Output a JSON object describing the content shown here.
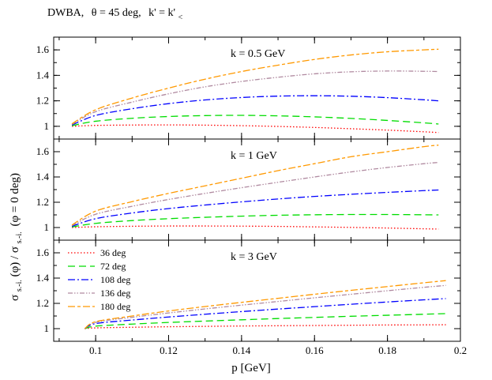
{
  "header": {
    "prefix": "DWBA,",
    "theta_label": "θ = 45 deg,",
    "k_label": "k' = k'",
    "k_subscript": "<"
  },
  "x_axis": {
    "label": "p [GeV]",
    "range": [
      0.0885,
      0.2
    ],
    "ticks": [
      0.1,
      0.12,
      0.14,
      0.16,
      0.18,
      0.2
    ],
    "tick_labels": [
      "0.1",
      "0.12",
      "0.14",
      "0.16",
      "0.18",
      "0.2"
    ]
  },
  "y_axis": {
    "label_main": "σ",
    "label_sub1": "s.-i.",
    "label_mid": "(φ) / σ",
    "label_sub2": "s.-i.",
    "label_end": "(φ = 0 deg)"
  },
  "legend": [
    {
      "label": "36 deg",
      "color": "#ff0000",
      "dash": "1.5,2.5"
    },
    {
      "label": "72 deg",
      "color": "#00dd00",
      "dash": "9,5"
    },
    {
      "label": "108 deg",
      "color": "#0000ff",
      "dash": "9,3,2,3"
    },
    {
      "label": "136 deg",
      "color": "#b08aa0",
      "dash": "6,2,1.5,2,1.5,2"
    },
    {
      "label": "180 deg",
      "color": "#ff9900",
      "dash": "9,3,4,3"
    }
  ],
  "chart_data": [
    {
      "type": "line",
      "panel": "top",
      "title": "k = 0.5 GeV",
      "ylim": [
        0.9,
        1.7
      ],
      "yticks": [
        1.0,
        1.2,
        1.4,
        1.6
      ],
      "ytick_labels": [
        "1",
        "1.2",
        "1.4",
        "1.6"
      ],
      "x": [
        0.0935,
        0.1,
        0.11,
        0.12,
        0.13,
        0.14,
        0.15,
        0.16,
        0.17,
        0.18,
        0.19,
        0.194
      ],
      "series": [
        {
          "name": "36 deg",
          "values": [
            1.0,
            1.007,
            1.01,
            1.011,
            1.009,
            1.005,
            0.999,
            0.991,
            0.981,
            0.97,
            0.957,
            0.951
          ]
        },
        {
          "name": "72 deg",
          "values": [
            1.005,
            1.04,
            1.063,
            1.077,
            1.084,
            1.086,
            1.082,
            1.074,
            1.062,
            1.046,
            1.027,
            1.018
          ]
        },
        {
          "name": "108 deg",
          "values": [
            1.01,
            1.085,
            1.138,
            1.178,
            1.207,
            1.226,
            1.237,
            1.24,
            1.236,
            1.225,
            1.208,
            1.2
          ]
        },
        {
          "name": "136 deg",
          "values": [
            1.015,
            1.115,
            1.19,
            1.255,
            1.31,
            1.352,
            1.385,
            1.412,
            1.428,
            1.434,
            1.432,
            1.43
          ]
        },
        {
          "name": "180 deg",
          "values": [
            1.02,
            1.13,
            1.222,
            1.3,
            1.37,
            1.43,
            1.48,
            1.525,
            1.56,
            1.585,
            1.6,
            1.605
          ]
        }
      ]
    },
    {
      "type": "line",
      "panel": "middle",
      "title": "k = 1 GeV",
      "ylim": [
        0.9,
        1.7
      ],
      "yticks": [
        1.0,
        1.2,
        1.4,
        1.6
      ],
      "ytick_labels": [
        "1",
        "1.2",
        "1.4",
        "1.6"
      ],
      "x": [
        0.0935,
        0.1,
        0.11,
        0.12,
        0.13,
        0.14,
        0.15,
        0.16,
        0.17,
        0.18,
        0.19,
        0.194
      ],
      "series": [
        {
          "name": "36 deg",
          "values": [
            1.0,
            1.006,
            1.01,
            1.012,
            1.012,
            1.011,
            1.009,
            1.005,
            1.001,
            0.996,
            0.99,
            0.988
          ]
        },
        {
          "name": "72 deg",
          "values": [
            1.005,
            1.033,
            1.055,
            1.07,
            1.081,
            1.09,
            1.097,
            1.101,
            1.103,
            1.103,
            1.101,
            1.1
          ]
        },
        {
          "name": "108 deg",
          "values": [
            1.01,
            1.07,
            1.115,
            1.15,
            1.178,
            1.203,
            1.226,
            1.246,
            1.263,
            1.278,
            1.292,
            1.297
          ]
        },
        {
          "name": "136 deg",
          "values": [
            1.015,
            1.105,
            1.168,
            1.222,
            1.27,
            1.315,
            1.358,
            1.4,
            1.44,
            1.475,
            1.505,
            1.515
          ]
        },
        {
          "name": "180 deg",
          "values": [
            1.02,
            1.13,
            1.205,
            1.27,
            1.33,
            1.39,
            1.45,
            1.505,
            1.56,
            1.6,
            1.64,
            1.652
          ]
        }
      ]
    },
    {
      "type": "line",
      "panel": "bottom",
      "title": "k = 3 GeV",
      "ylim": [
        0.9,
        1.7
      ],
      "yticks": [
        1.0,
        1.2,
        1.4,
        1.6
      ],
      "ytick_labels": [
        "1",
        "1.2",
        "1.4",
        "1.6"
      ],
      "x": [
        0.097,
        0.1,
        0.11,
        0.12,
        0.13,
        0.14,
        0.15,
        0.16,
        0.17,
        0.18,
        0.19,
        0.196
      ],
      "series": [
        {
          "name": "36 deg",
          "values": [
            1.0,
            1.006,
            1.011,
            1.015,
            1.018,
            1.021,
            1.023,
            1.025,
            1.027,
            1.029,
            1.03,
            1.031
          ]
        },
        {
          "name": "72 deg",
          "values": [
            1.0,
            1.02,
            1.036,
            1.049,
            1.06,
            1.07,
            1.08,
            1.089,
            1.098,
            1.106,
            1.114,
            1.119
          ]
        },
        {
          "name": "108 deg",
          "values": [
            1.0,
            1.04,
            1.068,
            1.092,
            1.114,
            1.135,
            1.155,
            1.174,
            1.193,
            1.211,
            1.228,
            1.238
          ]
        },
        {
          "name": "136 deg",
          "values": [
            1.0,
            1.05,
            1.09,
            1.124,
            1.156,
            1.186,
            1.215,
            1.244,
            1.272,
            1.3,
            1.327,
            1.342
          ]
        },
        {
          "name": "180 deg",
          "values": [
            1.0,
            1.055,
            1.1,
            1.14,
            1.175,
            1.208,
            1.24,
            1.272,
            1.303,
            1.333,
            1.363,
            1.38
          ]
        }
      ]
    }
  ]
}
